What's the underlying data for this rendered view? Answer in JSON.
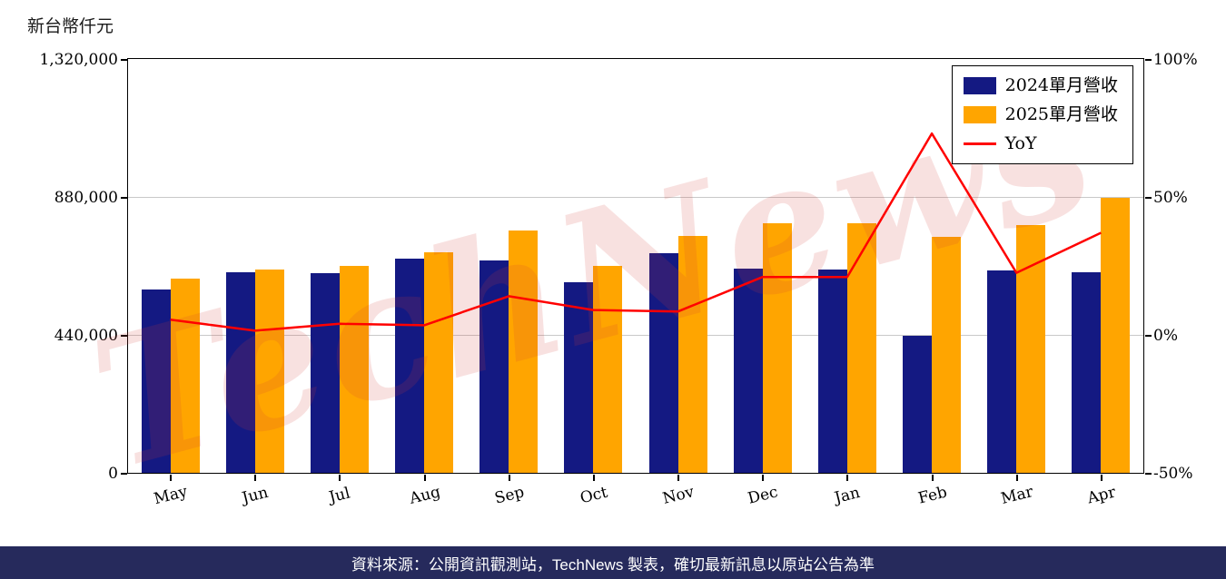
{
  "header": {
    "unit_label": "新台幣仟元"
  },
  "watermark": "TechNews",
  "footer": {
    "text": "資料來源：公開資訊觀測站，TechNews 製表，確切最新訊息以原站公告為準"
  },
  "colors": {
    "bar_2024": "#141982",
    "bar_2025": "#FFA500",
    "yoy_line": "#FF0000",
    "grid": "#c9c9c9",
    "axis": "#000000",
    "footer_bg": "#262a5c",
    "watermark": "#d63c38"
  },
  "chart_data": {
    "type": "bar",
    "title": "",
    "xlabel": "",
    "ylabel": "新台幣仟元",
    "categories": [
      "May",
      "Jun",
      "Jul",
      "Aug",
      "Sep",
      "Oct",
      "Nov",
      "Dec",
      "Jan",
      "Feb",
      "Mar",
      "Apr"
    ],
    "series": [
      {
        "name": "2024單月營收",
        "type": "bar",
        "axis": "left",
        "color_key": "bar_2024",
        "values": [
          585000,
          640000,
          637000,
          682000,
          678000,
          607000,
          701000,
          652000,
          650000,
          438000,
          646000,
          640000
        ]
      },
      {
        "name": "2025單月營收",
        "type": "bar",
        "axis": "left",
        "color_key": "bar_2025",
        "values": [
          621000,
          649000,
          661000,
          704000,
          773000,
          661000,
          757000,
          796000,
          796000,
          752000,
          791000,
          878000
        ]
      },
      {
        "name": "YoY",
        "type": "line",
        "axis": "right",
        "color_key": "yoy_line",
        "values": [
          5.5,
          1.5,
          4.0,
          3.5,
          14.0,
          9.0,
          8.5,
          21.0,
          21.0,
          73.0,
          22.5,
          37.0
        ]
      }
    ],
    "left_axis": {
      "min": 0,
      "max": 1320000,
      "ticks": [
        0,
        440000,
        880000,
        1320000
      ]
    },
    "right_axis": {
      "min": -50,
      "max": 100,
      "ticks": [
        -50,
        0,
        50,
        100
      ],
      "suffix": "%"
    },
    "grid": "horizontal",
    "legend_position": "top-right"
  }
}
